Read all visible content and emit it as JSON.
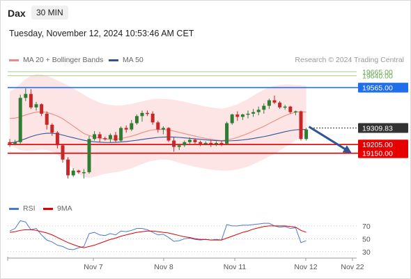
{
  "header": {
    "symbol": "Dax",
    "timeframe": "30 MIN",
    "datetime": "Tuesday, November 12, 2024 10:53:46 AM CET"
  },
  "legend": {
    "items": [
      {
        "label": "MA 20 + Bollinger Bands",
        "color": "#f08a80"
      },
      {
        "label": "MA 50",
        "color": "#2f5597"
      }
    ],
    "credit": "Research © 2024 Trading Central"
  },
  "rsi_legend": {
    "items": [
      {
        "label": "RSI",
        "color": "#4a78d4"
      },
      {
        "label": "9MA",
        "color": "#e00000"
      }
    ]
  },
  "colors": {
    "up": "#2e7d32",
    "down": "#c62828",
    "ma20": "#f08a80",
    "ma50": "#2f5597",
    "band": "#fde0e0",
    "arrow": "#2f5597"
  },
  "chart_data": [
    {
      "type": "candlestick",
      "levels": [
        {
          "label": "19665.00",
          "value": 19665,
          "color": "#a8d08d",
          "style": "label-only"
        },
        {
          "label": "19640.00",
          "value": 19640,
          "color": "#a8d08d",
          "style": "label-only"
        },
        {
          "label": "19565.00",
          "value": 19565,
          "color": "#1f6feb",
          "style": "box"
        },
        {
          "label": "19309.83",
          "value": 19309.83,
          "color": "#333333",
          "style": "box"
        },
        {
          "label": "19205.00",
          "value": 19205,
          "color": "#e60000",
          "style": "box"
        },
        {
          "label": "19150.00",
          "value": 19150,
          "color": "#e60000",
          "style": "box"
        }
      ],
      "x_ticks": [
        "Nov 7",
        "Nov 8",
        "Nov 11",
        "Nov 12",
        "Nov 22"
      ],
      "ohlc": [
        [
          19220,
          19240,
          19190,
          19210
        ],
        [
          19210,
          19235,
          19200,
          19220
        ],
        [
          19220,
          19520,
          19210,
          19500
        ],
        [
          19500,
          19560,
          19480,
          19525
        ],
        [
          19525,
          19555,
          19430,
          19440
        ],
        [
          19440,
          19475,
          19420,
          19460
        ],
        [
          19460,
          19465,
          19385,
          19400
        ],
        [
          19400,
          19415,
          19300,
          19330
        ],
        [
          19330,
          19340,
          19260,
          19280
        ],
        [
          19280,
          19290,
          19180,
          19200
        ],
        [
          19200,
          19210,
          19090,
          19110
        ],
        [
          19110,
          19125,
          18990,
          19010
        ],
        [
          19010,
          19055,
          19000,
          19040
        ],
        [
          19040,
          19045,
          19020,
          19030
        ],
        [
          19030,
          19050,
          18990,
          19030
        ],
        [
          19030,
          19260,
          19020,
          19240
        ],
        [
          19240,
          19290,
          19230,
          19270
        ],
        [
          19270,
          19285,
          19220,
          19245
        ],
        [
          19245,
          19255,
          19230,
          19240
        ],
        [
          19240,
          19275,
          19220,
          19265
        ],
        [
          19265,
          19285,
          19220,
          19230
        ],
        [
          19230,
          19320,
          19220,
          19310
        ],
        [
          19310,
          19325,
          19280,
          19300
        ],
        [
          19300,
          19360,
          19290,
          19340
        ],
        [
          19340,
          19395,
          19330,
          19385
        ],
        [
          19385,
          19420,
          19350,
          19405
        ],
        [
          19405,
          19420,
          19385,
          19400
        ],
        [
          19400,
          19415,
          19330,
          19345
        ],
        [
          19345,
          19355,
          19280,
          19300
        ],
        [
          19300,
          19320,
          19270,
          19310
        ],
        [
          19310,
          19315,
          19220,
          19230
        ],
        [
          19230,
          19250,
          19160,
          19190
        ],
        [
          19190,
          19210,
          19170,
          19200
        ],
        [
          19200,
          19230,
          19190,
          19220
        ],
        [
          19220,
          19250,
          19210,
          19235
        ],
        [
          19235,
          19245,
          19210,
          19220
        ],
        [
          19220,
          19230,
          19195,
          19210
        ],
        [
          19210,
          19225,
          19200,
          19215
        ],
        [
          19215,
          19235,
          19190,
          19210
        ],
        [
          19210,
          19225,
          19195,
          19215
        ],
        [
          19215,
          19230,
          19195,
          19210
        ],
        [
          19210,
          19350,
          19205,
          19340
        ],
        [
          19340,
          19400,
          19330,
          19395
        ],
        [
          19395,
          19415,
          19355,
          19380
        ],
        [
          19380,
          19400,
          19360,
          19395
        ],
        [
          19395,
          19420,
          19370,
          19400
        ],
        [
          19400,
          19430,
          19380,
          19410
        ],
        [
          19410,
          19445,
          19390,
          19425
        ],
        [
          19425,
          19465,
          19400,
          19450
        ],
        [
          19450,
          19495,
          19430,
          19485
        ],
        [
          19485,
          19515,
          19460,
          19470
        ],
        [
          19470,
          19480,
          19430,
          19440
        ],
        [
          19440,
          19455,
          19425,
          19445
        ],
        [
          19445,
          19450,
          19400,
          19410
        ],
        [
          19410,
          19420,
          19390,
          19415
        ],
        [
          19415,
          19420,
          19230,
          19240
        ],
        [
          19240,
          19310,
          19230,
          19300
        ]
      ],
      "ma20": [
        19370,
        19372,
        19380,
        19392,
        19402,
        19410,
        19412,
        19408,
        19398,
        19385,
        19368,
        19345,
        19322,
        19298,
        19275,
        19262,
        19252,
        19245,
        19240,
        19238,
        19238,
        19242,
        19250,
        19258,
        19268,
        19280,
        19290,
        19298,
        19300,
        19300,
        19297,
        19290,
        19282,
        19274,
        19266,
        19258,
        19250,
        19244,
        19238,
        19234,
        19230,
        19234,
        19240,
        19250,
        19262,
        19275,
        19290,
        19305,
        19320,
        19338,
        19355,
        19372,
        19388,
        19400,
        19410,
        19412,
        19410
      ],
      "ma50": [
        19215,
        19220,
        19230,
        19242,
        19255,
        19265,
        19272,
        19276,
        19276,
        19272,
        19265,
        19256,
        19248,
        19240,
        19232,
        19226,
        19222,
        19220,
        19218,
        19218,
        19219,
        19221,
        19224,
        19228,
        19232,
        19237,
        19242,
        19246,
        19250,
        19252,
        19253,
        19252,
        19250,
        19247,
        19244,
        19241,
        19238,
        19235,
        19232,
        19230,
        19228,
        19228,
        19229,
        19231,
        19234,
        19238,
        19243,
        19249,
        19255,
        19262,
        19270,
        19278,
        19286,
        19293,
        19298,
        19300,
        19300
      ],
      "bb_upper": [
        19540,
        19560,
        19590,
        19620,
        19640,
        19650,
        19648,
        19640,
        19625,
        19610,
        19595,
        19580,
        19560,
        19540,
        19520,
        19500,
        19485,
        19470,
        19460,
        19455,
        19452,
        19452,
        19456,
        19462,
        19470,
        19478,
        19486,
        19492,
        19494,
        19494,
        19492,
        19488,
        19482,
        19475,
        19468,
        19460,
        19452,
        19446,
        19440,
        19436,
        19432,
        19438,
        19448,
        19460,
        19476,
        19494,
        19514,
        19534,
        19552,
        19566,
        19576,
        19582,
        19584,
        19584,
        19582,
        19580,
        19578
      ],
      "bb_lower": [
        19200,
        19185,
        19170,
        19165,
        19165,
        19168,
        19172,
        19170,
        19160,
        19140,
        19115,
        19085,
        19050,
        19020,
        19000,
        18995,
        19000,
        19010,
        19020,
        19025,
        19030,
        19035,
        19045,
        19055,
        19068,
        19082,
        19094,
        19102,
        19108,
        19110,
        19108,
        19100,
        19090,
        19080,
        19072,
        19064,
        19058,
        19052,
        19046,
        19042,
        19040,
        19040,
        19042,
        19048,
        19056,
        19066,
        19080,
        19096,
        19112,
        19130,
        19148,
        19166,
        19188,
        19210,
        19232,
        19250,
        19265
      ],
      "projection": {
        "from": 19300,
        "to": 19150
      },
      "y_visible_range": [
        18950,
        19700
      ]
    },
    {
      "type": "line",
      "name": "RSI",
      "y_ticks": [
        70,
        50,
        30
      ],
      "ylim": [
        20,
        85
      ],
      "series": [
        {
          "name": "RSI",
          "color": "#4a78d4",
          "values": [
            62,
            66,
            78,
            76,
            64,
            66,
            56,
            48,
            45,
            40,
            38,
            34,
            33,
            36,
            38,
            58,
            60,
            56,
            55,
            58,
            56,
            62,
            61,
            63,
            66,
            66,
            64,
            60,
            56,
            57,
            52,
            46,
            47,
            50,
            51,
            49,
            48,
            49,
            48,
            49,
            48,
            72,
            70,
            70,
            71,
            71,
            72,
            73,
            74,
            74,
            70,
            68,
            69,
            66,
            67,
            44,
            47
          ]
        },
        {
          "name": "9MA",
          "color": "#e00000",
          "values": [
            60,
            61,
            63,
            64,
            64,
            63,
            61,
            59,
            56,
            52,
            48,
            44,
            41,
            38,
            36,
            38,
            40,
            43,
            46,
            49,
            51,
            54,
            56,
            58,
            60,
            61,
            62,
            62,
            61,
            60,
            59,
            57,
            55,
            53,
            52,
            50,
            49,
            49,
            48,
            48,
            48,
            51,
            54,
            57,
            60,
            62,
            65,
            67,
            69,
            70,
            70,
            70,
            70,
            69,
            68,
            63,
            60
          ]
        }
      ]
    }
  ]
}
